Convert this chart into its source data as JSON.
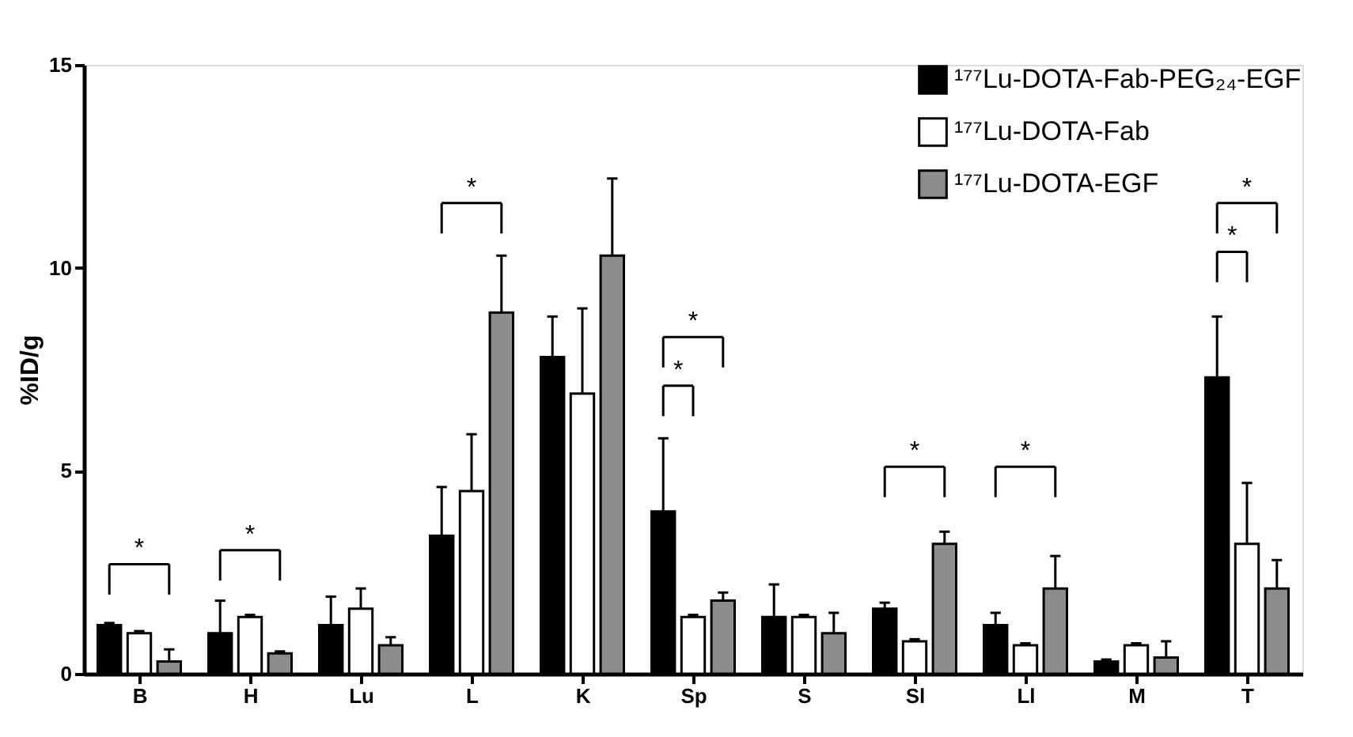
{
  "chart_data": {
    "type": "bar",
    "ylabel": "%ID/g",
    "categories": [
      "B",
      "H",
      "Lu",
      "L",
      "K",
      "Sp",
      "S",
      "Sl",
      "Ll",
      "M",
      "T"
    ],
    "ylim": [
      0,
      15
    ],
    "yticks": [
      0,
      5,
      10,
      15
    ],
    "grid": false,
    "legend": "top right",
    "series": [
      {
        "name": "¹⁷⁷Lu-DOTA-Fab-PEG₂₄-EGF",
        "color": "#000000",
        "values": [
          1.2,
          1.0,
          1.2,
          3.4,
          7.8,
          4.0,
          1.4,
          1.6,
          1.2,
          0.3,
          7.3
        ],
        "errors": [
          [
            1.2,
            1.25
          ],
          [
            1.0,
            1.8
          ],
          [
            1.2,
            1.9
          ],
          [
            3.4,
            4.6
          ],
          [
            7.8,
            8.8
          ],
          [
            4.0,
            5.8
          ],
          [
            1.4,
            2.2
          ],
          [
            1.6,
            1.75
          ],
          [
            1.2,
            1.5
          ],
          [
            0.3,
            0.35
          ],
          [
            7.3,
            8.8
          ]
        ]
      },
      {
        "name": "¹⁷⁷Lu-DOTA-Fab",
        "color": "#ffffff",
        "values": [
          1.0,
          1.4,
          1.6,
          4.5,
          6.9,
          1.4,
          1.4,
          0.8,
          0.7,
          0.7,
          3.2
        ],
        "errors": [
          [
            1.0,
            1.05
          ],
          [
            1.4,
            1.45
          ],
          [
            1.6,
            2.1
          ],
          [
            4.5,
            5.9
          ],
          [
            6.9,
            9.0
          ],
          [
            1.4,
            1.45
          ],
          [
            1.4,
            1.45
          ],
          [
            0.8,
            0.85
          ],
          [
            0.7,
            0.75
          ],
          [
            0.7,
            0.75
          ],
          [
            3.2,
            4.7
          ]
        ]
      },
      {
        "name": "¹⁷⁷Lu-DOTA-EGF",
        "color": "#8c8c8c",
        "values": [
          0.3,
          0.5,
          0.7,
          8.9,
          10.3,
          1.8,
          1.0,
          3.2,
          2.1,
          0.4,
          2.1
        ],
        "errors": [
          [
            0.3,
            0.6
          ],
          [
            0.5,
            0.55
          ],
          [
            0.7,
            0.9
          ],
          [
            8.9,
            10.3
          ],
          [
            10.3,
            12.2
          ],
          [
            1.8,
            2.0
          ],
          [
            1.0,
            1.5
          ],
          [
            3.2,
            3.5
          ],
          [
            2.1,
            2.9
          ],
          [
            0.4,
            0.8
          ],
          [
            2.1,
            2.8
          ]
        ]
      }
    ],
    "annotations": [
      "*",
      "*",
      "*",
      "*",
      "*",
      "*",
      "*",
      "*",
      "*"
    ]
  }
}
